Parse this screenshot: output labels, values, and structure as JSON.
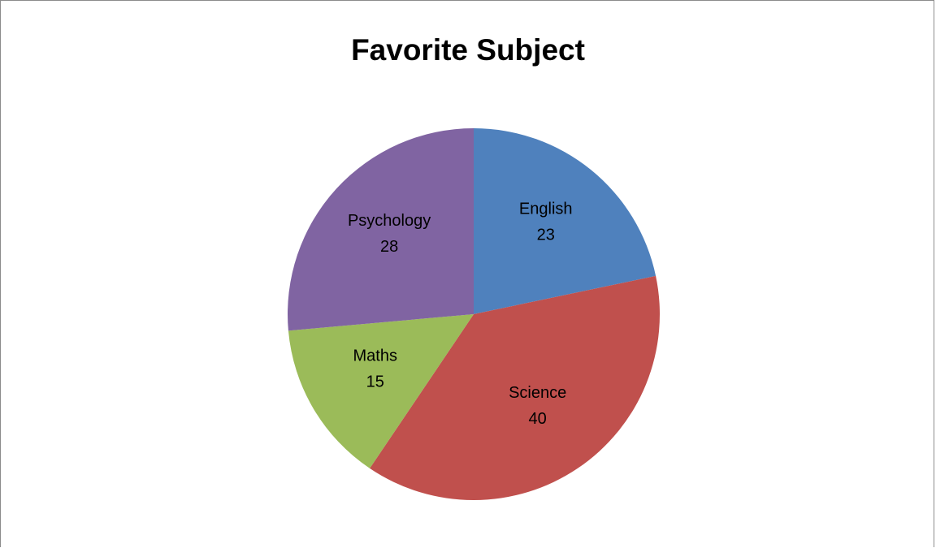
{
  "chart_data": {
    "type": "pie",
    "title": "Favorite Subject",
    "categories": [
      "English",
      "Science",
      "Maths",
      "Psychology"
    ],
    "values": [
      23,
      40,
      15,
      28
    ],
    "colors": [
      "#4f81bd",
      "#c0504d",
      "#9bbb59",
      "#8064a2"
    ],
    "start_angle_deg": 0,
    "direction": "clockwise",
    "data_labels": "category-and-value",
    "legend": "none"
  }
}
